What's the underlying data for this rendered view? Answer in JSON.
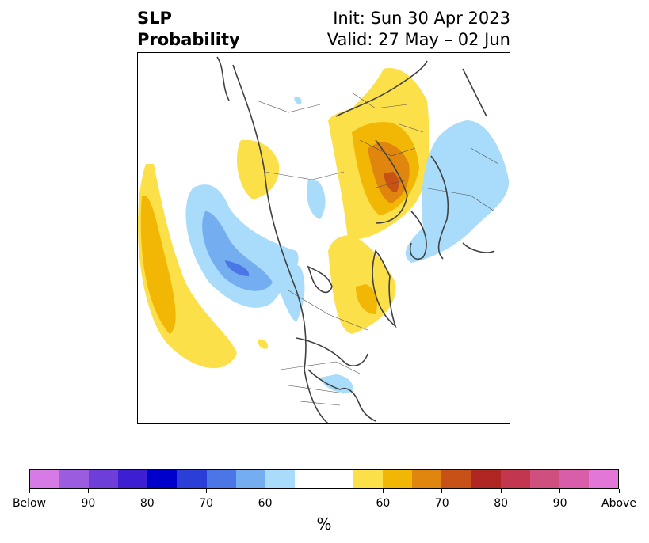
{
  "title": {
    "left_line1": "SLP",
    "left_line2": "Probability",
    "right_line1": "Init: Sun 30 Apr 2023",
    "right_line2": "Valid: 27 May – 02 Jun"
  },
  "colorbar": {
    "colors": [
      "#d67be6",
      "#9b5ce0",
      "#6d3fd8",
      "#3d1ed0",
      "#0000cc",
      "#2b3fd8",
      "#4a76e6",
      "#75aef0",
      "#a9dcfa",
      "#ffffff",
      "#ffffff",
      "#fbe04a",
      "#f2b705",
      "#e0860e",
      "#c75116",
      "#b02622",
      "#c2374d",
      "#cf507f",
      "#d85ea9",
      "#e277d8"
    ],
    "tick_labels": [
      "Below",
      "90",
      "80",
      "70",
      "60",
      "60",
      "70",
      "80",
      "90",
      "Above"
    ],
    "label": "%"
  },
  "legend_colors": {
    "above_light": "#fbe04a",
    "above_mid": "#f2b705",
    "above_dark": "#e0860e",
    "above_darker": "#c75116",
    "below_light": "#a9dcfa",
    "below_mid": "#75aef0",
    "below_dark": "#4a76e6"
  }
}
